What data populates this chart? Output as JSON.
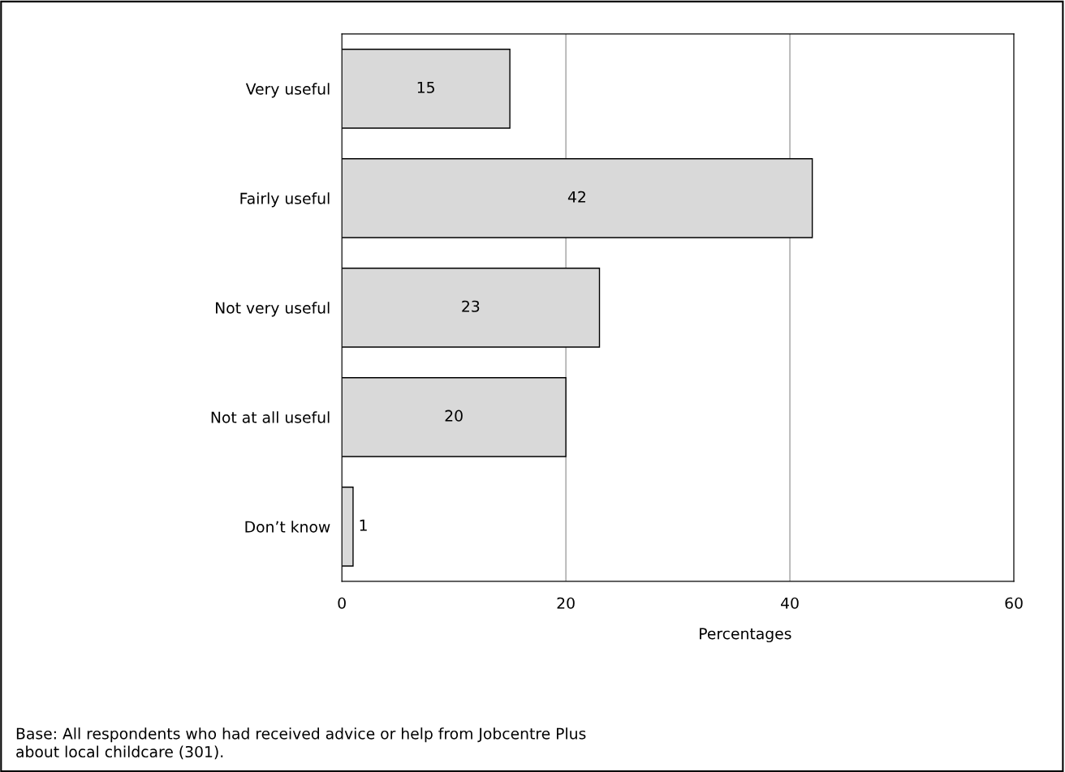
{
  "chart_data": {
    "type": "bar",
    "orientation": "horizontal",
    "categories": [
      "Very useful",
      "Fairly useful",
      "Not very useful",
      "Not at all useful",
      "Don’t know"
    ],
    "values": [
      15,
      42,
      23,
      20,
      1
    ],
    "color": "#d9d9d9",
    "xlabel": "Percentages",
    "xlim": [
      0,
      60
    ],
    "xticks": [
      0,
      20,
      40,
      60
    ],
    "grid": "x",
    "data_labels": true,
    "annotations": [
      "Base: All respondents who had received advice or help from Jobcentre Plus\nabout local childcare (301)."
    ]
  }
}
